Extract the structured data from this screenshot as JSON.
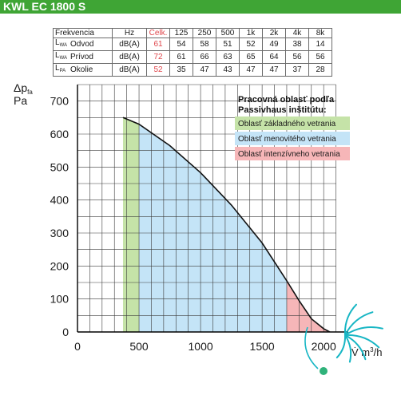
{
  "header": {
    "title": "KWL EC 1800 S"
  },
  "table": {
    "header": [
      "Frekvencia",
      "",
      "Hz",
      "Celk.",
      "125",
      "250",
      "500",
      "1k",
      "2k",
      "4k",
      "8k"
    ],
    "rows": [
      {
        "sym": "L",
        "sub": "WA",
        "name": "Odvod",
        "unit": "dB(A)",
        "total": "61",
        "values": [
          "54",
          "58",
          "51",
          "52",
          "49",
          "38",
          "14"
        ]
      },
      {
        "sym": "L",
        "sub": "WA",
        "name": "Prívod",
        "unit": "dB(A)",
        "total": "72",
        "values": [
          "61",
          "66",
          "63",
          "65",
          "64",
          "56",
          "56"
        ]
      },
      {
        "sym": "L",
        "sub": "PA",
        "name": "Okolie",
        "unit": "dB(A)",
        "total": "52",
        "values": [
          "35",
          "47",
          "43",
          "47",
          "47",
          "37",
          "28"
        ]
      }
    ]
  },
  "colors": {
    "header_bg": "#3fa535",
    "red_text": "#e0474c",
    "basic_zone": "#c5e3a8",
    "nominal_zone": "#c4e4f7",
    "intensive_zone": "#f6b6b8",
    "logo": "#17b6c4"
  },
  "chart_data": {
    "type": "area",
    "ylabel_main": "Δp",
    "ylabel_sub": "fa",
    "ylabel_unit": "Pa",
    "xlabel_main": "V̇ m",
    "xlabel_sup": "3",
    "xlabel_tail": "/h",
    "xlim": [
      0,
      2200
    ],
    "ylim": [
      0,
      750
    ],
    "xticks": [
      0,
      500,
      1000,
      1500,
      2000
    ],
    "yticks": [
      0,
      100,
      200,
      300,
      400,
      500,
      600,
      700
    ],
    "grid": true,
    "curve": {
      "x": [
        370,
        500,
        750,
        1000,
        1250,
        1500,
        1700,
        1800,
        1900,
        2000,
        2050
      ],
      "y": [
        650,
        630,
        565,
        483,
        385,
        270,
        155,
        95,
        40,
        10,
        0
      ]
    },
    "zones": [
      {
        "name": "Oblasť základného vetrania",
        "x_from": 370,
        "x_to": 500,
        "color": "#c5e3a8"
      },
      {
        "name": "Oblasť menovitého vetrania",
        "x_from": 500,
        "x_to": 1700,
        "color": "#c4e4f7"
      },
      {
        "name": "Oblasť intenzívneho vetrania",
        "x_from": 1700,
        "x_to": 2050,
        "color": "#f6b6b8"
      }
    ],
    "legend": {
      "title_line1": "Pracovná oblasť podľa",
      "title_line2": "Passivhaus inštitútu:",
      "placement": "top-right"
    }
  }
}
